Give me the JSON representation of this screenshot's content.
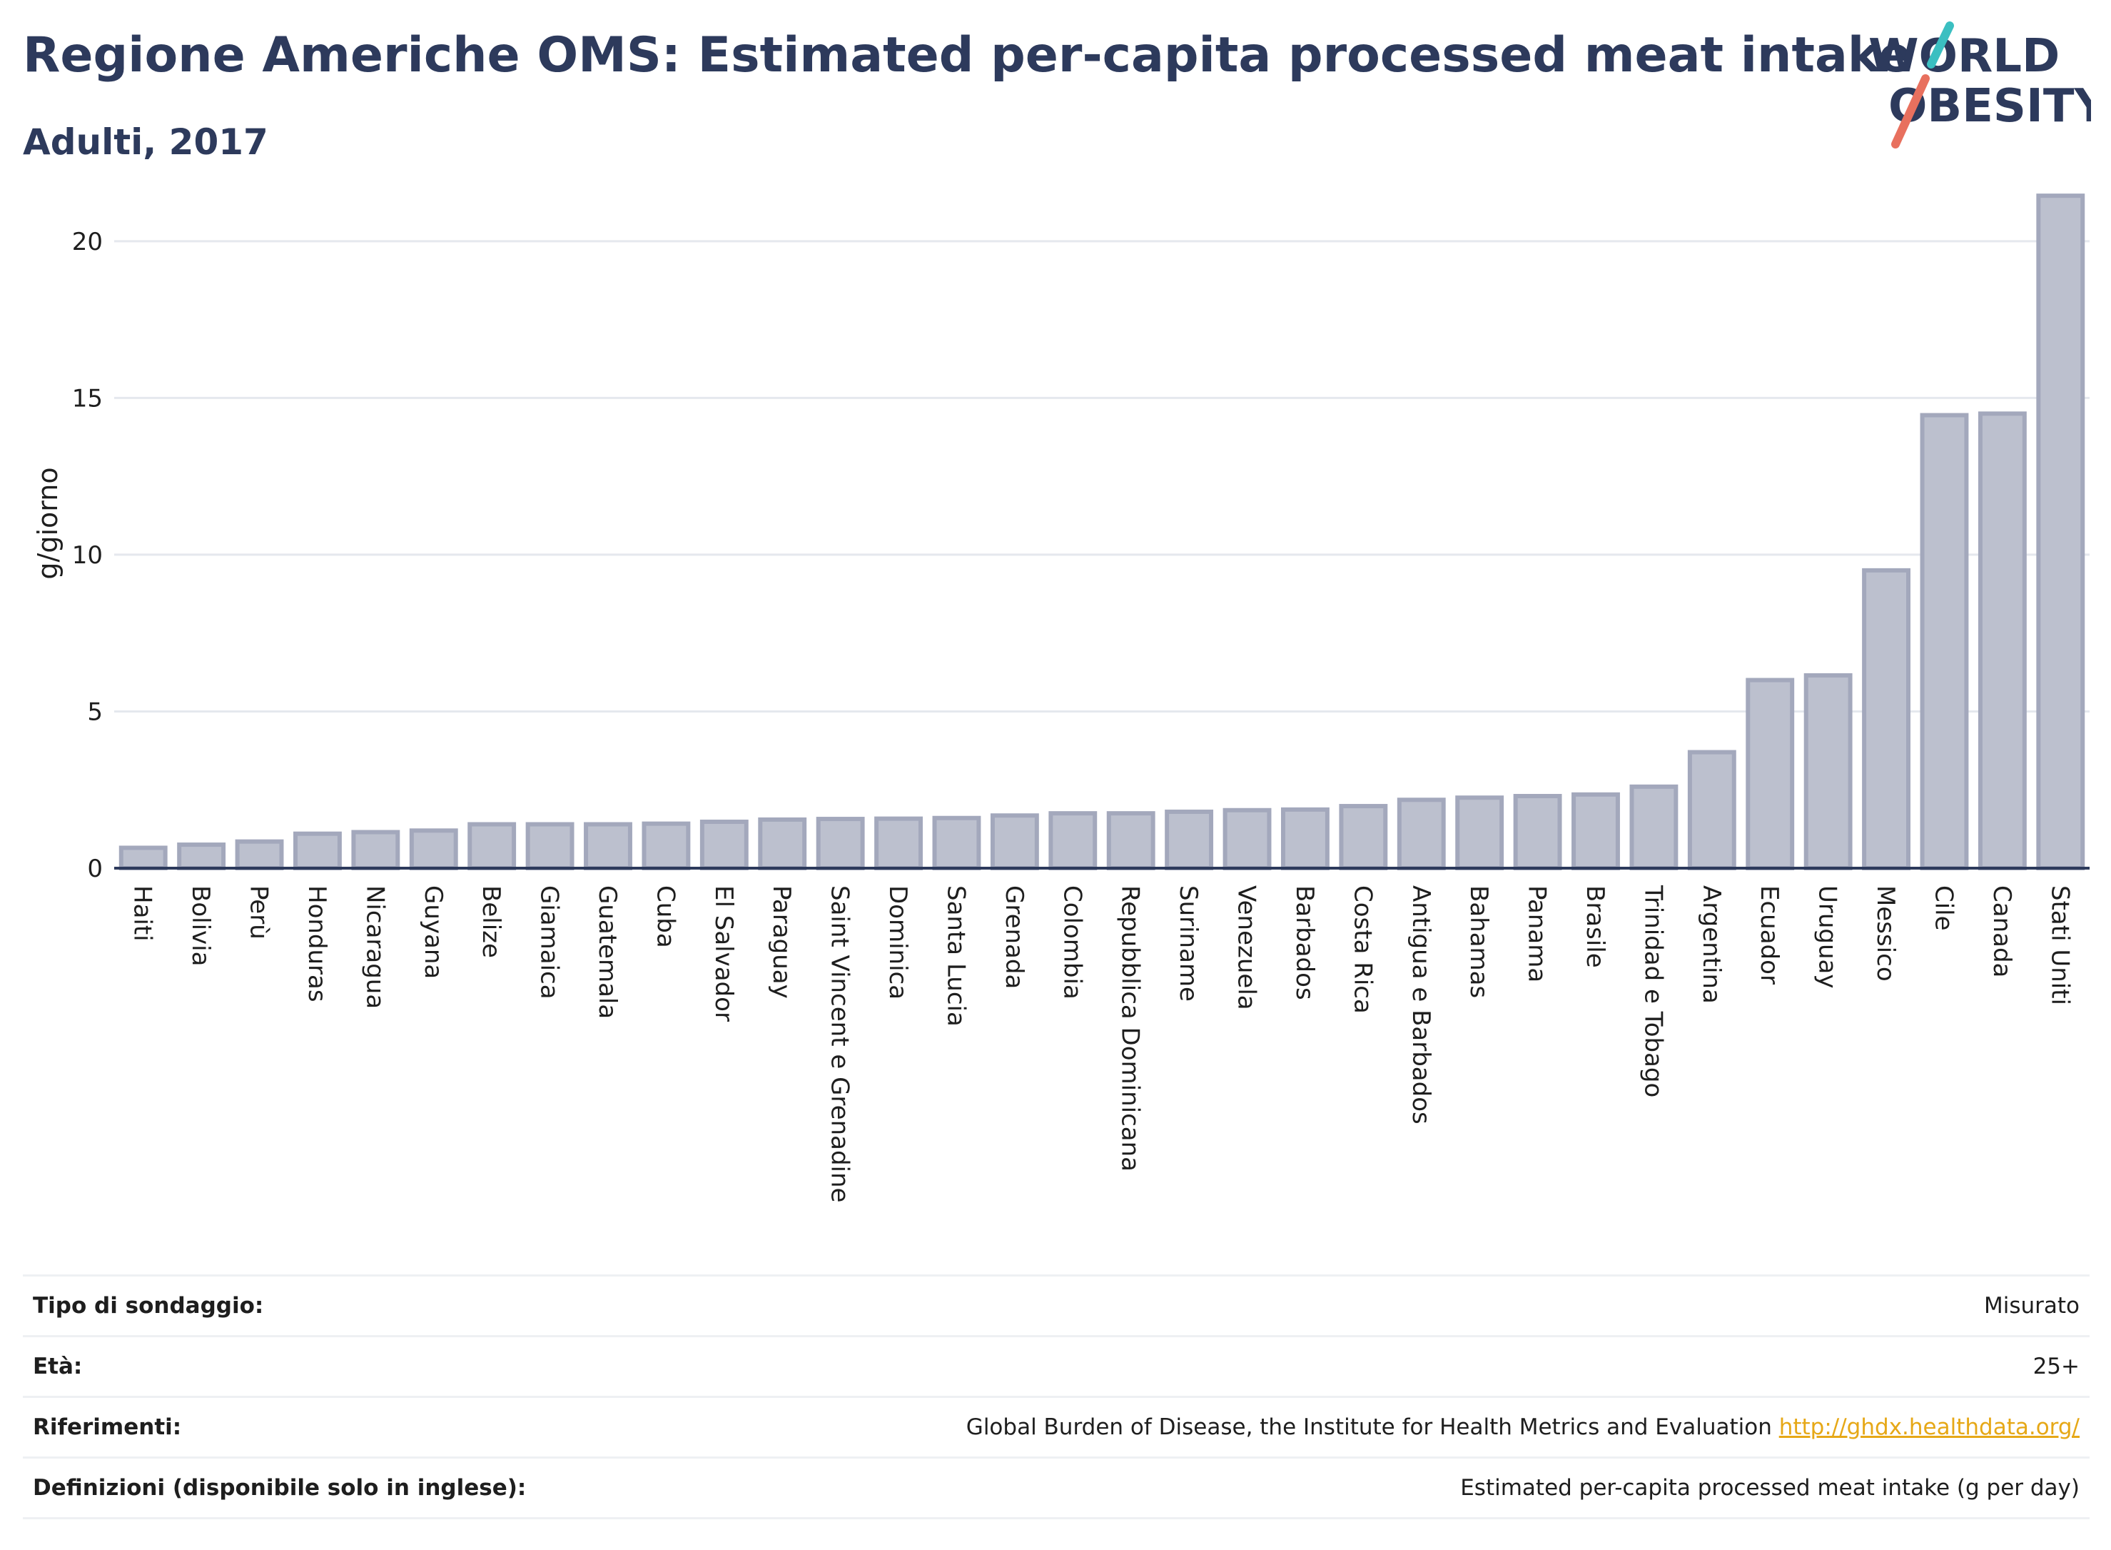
{
  "header": {
    "title": "Regione Americhe OMS: Estimated per-capita processed meat intake",
    "subtitle": "Adulti, 2017"
  },
  "logo": {
    "line1": "WORLD",
    "line2": "OBESITY",
    "colors": {
      "text": "#2d3a5c",
      "slash_top": "#3bbfc1",
      "slash_bottom": "#e8705e"
    }
  },
  "chart_data": {
    "type": "bar",
    "title": "Regione Americhe OMS: Estimated per-capita processed meat intake",
    "subtitle": "Adulti, 2017",
    "xlabel": "",
    "ylabel": "g/giorno",
    "ylim": [
      0,
      22
    ],
    "yticks": [
      0,
      5,
      10,
      15,
      20
    ],
    "grid": true,
    "legend": "none",
    "colors": {
      "bar_fill": "#bcc0ce",
      "bar_stroke": "#a3a8bc",
      "axis": "#2d3a5c",
      "grid": "#e5e8ee"
    },
    "categories": [
      "Haiti",
      "Bolivia",
      "Perù",
      "Honduras",
      "Nicaragua",
      "Guyana",
      "Belize",
      "Giamaica",
      "Guatemala",
      "Cuba",
      "El Salvador",
      "Paraguay",
      "Saint Vincent e Grenadine",
      "Dominica",
      "Santa Lucia",
      "Grenada",
      "Colombia",
      "Repubblica Dominicana",
      "Suriname",
      "Venezuela",
      "Barbados",
      "Costa Rica",
      "Antigua e Barbados",
      "Bahamas",
      "Panama",
      "Brasile",
      "Trinidad e Tobago",
      "Argentina",
      "Ecuador",
      "Uruguay",
      "Messico",
      "Cile",
      "Canada",
      "Stati Uniti"
    ],
    "values": [
      0.65,
      0.75,
      0.85,
      1.1,
      1.15,
      1.2,
      1.4,
      1.4,
      1.4,
      1.42,
      1.48,
      1.55,
      1.57,
      1.58,
      1.6,
      1.68,
      1.75,
      1.75,
      1.8,
      1.85,
      1.87,
      1.98,
      2.18,
      2.25,
      2.3,
      2.35,
      2.6,
      3.7,
      6.0,
      6.15,
      9.5,
      14.45,
      14.5,
      21.45
    ]
  },
  "meta": {
    "rows": [
      {
        "label": "Tipo di sondaggio:",
        "value": "Misurato"
      },
      {
        "label": "Età:",
        "value": "25+"
      },
      {
        "label": "Riferimenti:",
        "value": "Global Burden of Disease, the Institute for Health Metrics and Evaluation",
        "link": "http://ghdx.healthdata.org/"
      },
      {
        "label": "Definizioni (disponibile solo in inglese):",
        "value": "Estimated per-capita processed meat intake (g per day)"
      }
    ]
  }
}
